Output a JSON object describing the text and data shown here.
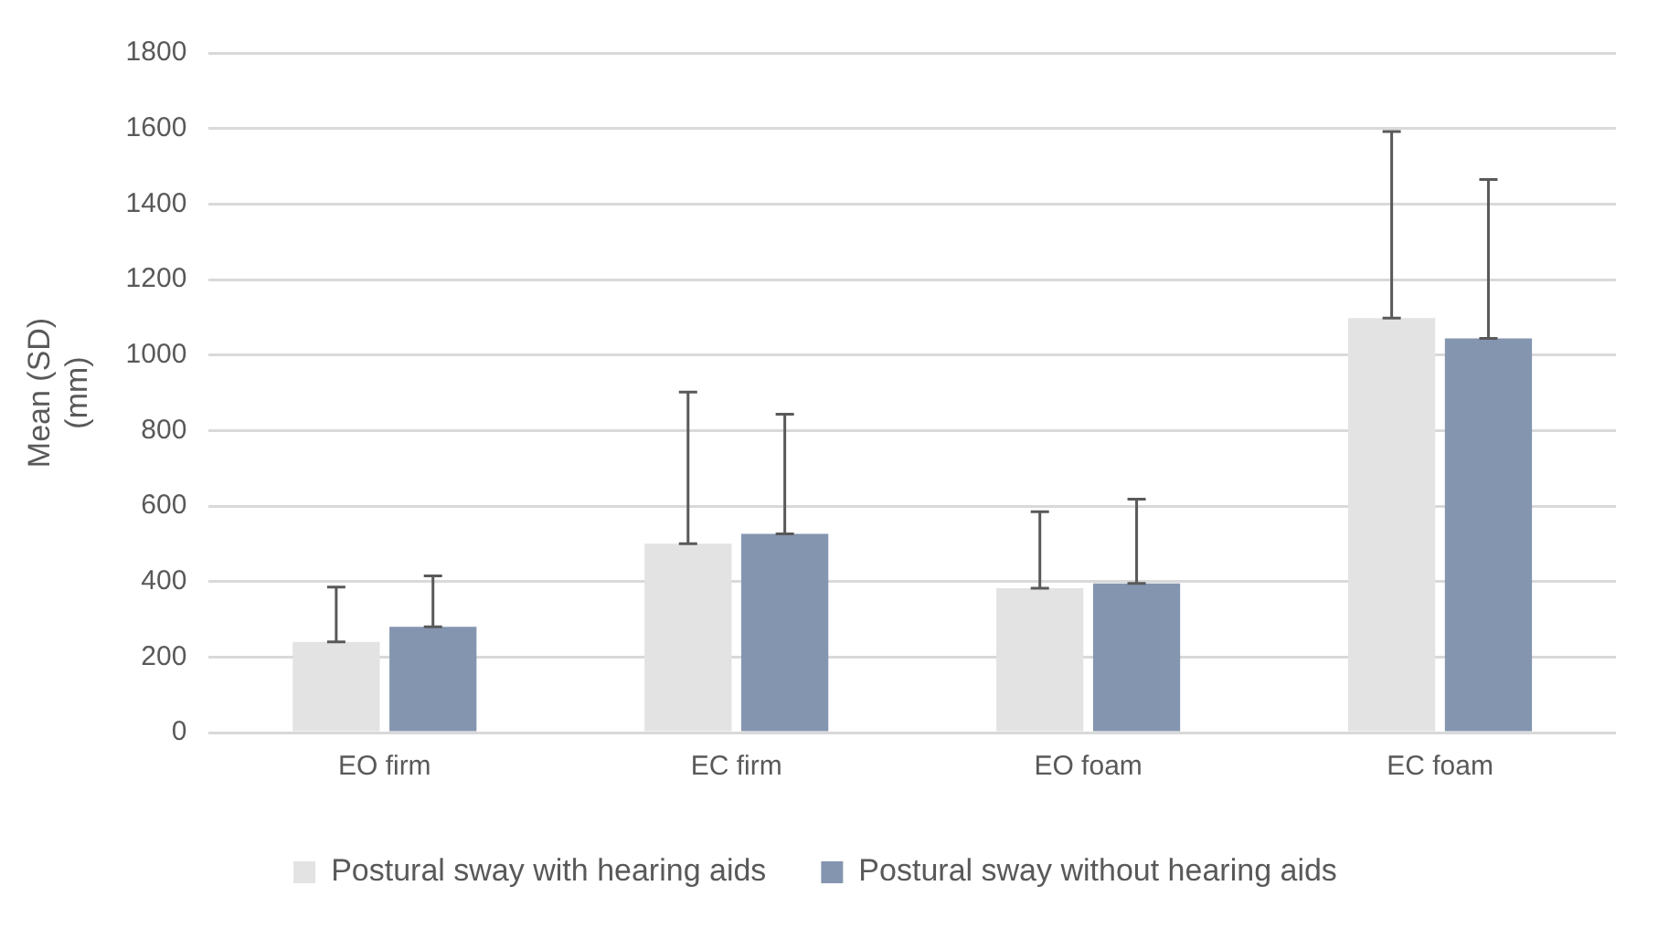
{
  "chart_data": {
    "type": "bar",
    "ylabel": "Mean (SD)\n(mm)",
    "categories": [
      "EO firm",
      "EC firm",
      "EO foam",
      "EC foam"
    ],
    "series": [
      {
        "name": "Postural sway with hearing aids",
        "color": "#e4e3e4",
        "values": [
          240,
          500,
          382,
          1098
        ],
        "errors": [
          [
            240,
            385
          ],
          [
            500,
            902
          ],
          [
            382,
            585
          ],
          [
            1098,
            1592
          ]
        ]
      },
      {
        "name": "Postural sway without hearing aids",
        "color": "#8495b0",
        "values": [
          280,
          526,
          395,
          1044
        ],
        "errors": [
          [
            280,
            415
          ],
          [
            526,
            843
          ],
          [
            395,
            618
          ],
          [
            1044,
            1465
          ]
        ]
      }
    ],
    "ylim": [
      0,
      1800
    ],
    "yticks": [
      0,
      200,
      400,
      600,
      800,
      1000,
      1200,
      1400,
      1600,
      1800
    ],
    "grid": "y",
    "legend": "bottom"
  }
}
